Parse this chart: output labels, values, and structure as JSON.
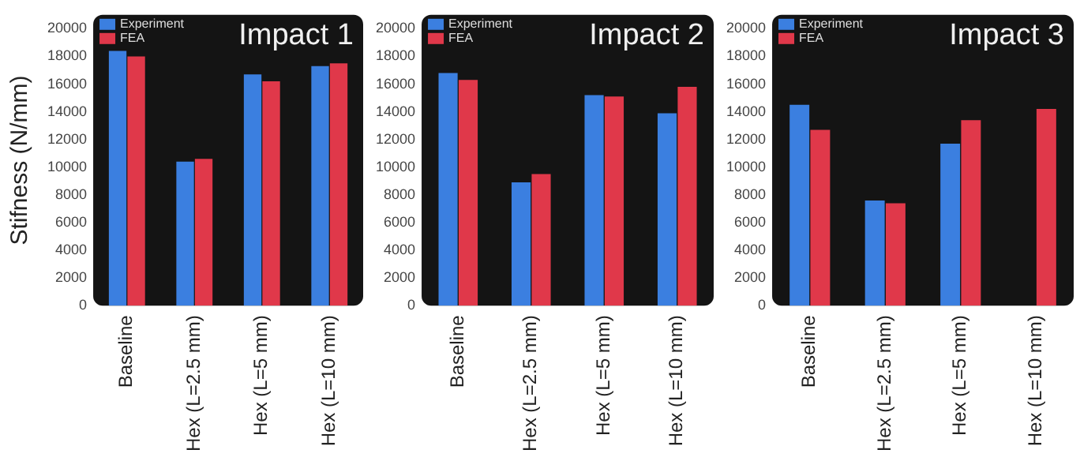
{
  "chart_data": [
    {
      "type": "bar",
      "title": "Impact 1",
      "ylabel": "Stifness (N/mm)",
      "categories": [
        "Baseline",
        "Hex (L=2.5 mm)",
        "Hex (L=5 mm)",
        "Hex (L=10 mm)"
      ],
      "series": [
        {
          "name": "Experiment",
          "color": "#3b7fe0",
          "values": [
            18400,
            10400,
            16700,
            17300
          ]
        },
        {
          "name": "FEA",
          "color": "#e0384a",
          "values": [
            18000,
            10600,
            16200,
            17500
          ]
        }
      ],
      "ylim": [
        0,
        21000
      ],
      "yticks": [
        0,
        2000,
        4000,
        6000,
        8000,
        10000,
        12000,
        14000,
        16000,
        18000,
        20000
      ],
      "grid": false,
      "legend": "top left"
    },
    {
      "type": "bar",
      "title": "Impact 2",
      "categories": [
        "Baseline",
        "Hex (L=2.5 mm)",
        "Hex (L=5 mm)",
        "Hex (L=10 mm)"
      ],
      "series": [
        {
          "name": "Experiment",
          "color": "#3b7fe0",
          "values": [
            16800,
            8900,
            15200,
            13900
          ]
        },
        {
          "name": "FEA",
          "color": "#e0384a",
          "values": [
            16300,
            9500,
            15100,
            15800
          ]
        }
      ],
      "ylim": [
        0,
        21000
      ],
      "yticks": [
        0,
        2000,
        4000,
        6000,
        8000,
        10000,
        12000,
        14000,
        16000,
        18000,
        20000
      ],
      "grid": false,
      "legend": "top left"
    },
    {
      "type": "bar",
      "title": "Impact 3",
      "categories": [
        "Baseline",
        "Hex (L=2.5 mm)",
        "Hex (L=5 mm)",
        "Hex (L=10 mm)"
      ],
      "series": [
        {
          "name": "Experiment",
          "color": "#3b7fe0",
          "values": [
            14500,
            7600,
            11700,
            null
          ]
        },
        {
          "name": "FEA",
          "color": "#e0384a",
          "values": [
            12700,
            7400,
            13400,
            14200
          ]
        }
      ],
      "ylim": [
        0,
        21000
      ],
      "yticks": [
        0,
        2000,
        4000,
        6000,
        8000,
        10000,
        12000,
        14000,
        16000,
        18000,
        20000
      ],
      "grid": false,
      "legend": "top left"
    }
  ]
}
